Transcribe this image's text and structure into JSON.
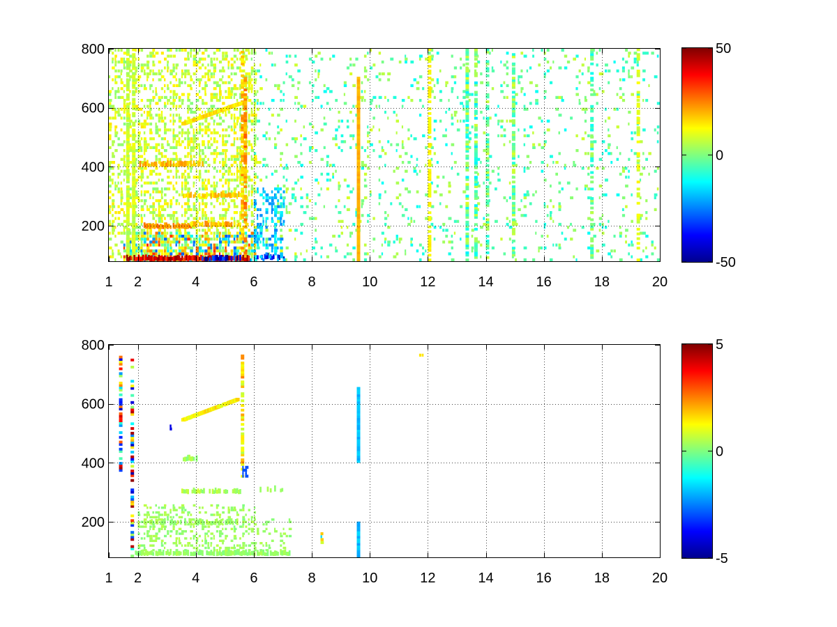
{
  "figure": {
    "background": "#ffffff",
    "colormap": "jet"
  },
  "chart_data": [
    {
      "type": "heatmap",
      "title": "",
      "xlabel": "",
      "ylabel": "",
      "xlim": [
        1,
        20
      ],
      "ylim": [
        80,
        800
      ],
      "grid": true,
      "x_ticks": [
        1,
        2,
        4,
        6,
        8,
        10,
        12,
        14,
        16,
        18,
        20
      ],
      "x_tick_labels": [
        "1",
        "2",
        "4",
        "6",
        "8",
        "10",
        "12",
        "14",
        "16",
        "18",
        "20"
      ],
      "y_ticks": [
        200,
        400,
        600,
        800
      ],
      "y_tick_labels": [
        "200",
        "400",
        "600",
        "800"
      ],
      "colorbar": {
        "clim": [
          -50,
          50
        ],
        "ticks": [
          50,
          0,
          -50
        ],
        "tick_labels": [
          "50",
          "0",
          "-50"
        ]
      },
      "features": [
        {
          "kind": "scatter",
          "x_range": [
            1.0,
            6.0
          ],
          "y_range": [
            80,
            800
          ],
          "value_range": [
            0,
            15
          ],
          "density": 0.45,
          "cell_height": 10
        },
        {
          "kind": "scatter",
          "x_range": [
            1.5,
            6.0
          ],
          "y_range": [
            80,
            180
          ],
          "value_range": [
            -30,
            35
          ],
          "density": 0.7,
          "cell_height": 10
        },
        {
          "kind": "scatter",
          "x_range": [
            6.0,
            10.0
          ],
          "y_range": [
            80,
            800
          ],
          "value_range": [
            -12,
            10
          ],
          "density": 0.12,
          "cell_height": 10
        },
        {
          "kind": "scatter",
          "x_range": [
            10.0,
            20.0
          ],
          "y_range": [
            80,
            800
          ],
          "value_range": [
            -12,
            8
          ],
          "density": 0.1,
          "cell_height": 10
        },
        {
          "kind": "column",
          "x": 1.6,
          "y_range": [
            80,
            800
          ],
          "value_range": [
            3,
            12
          ],
          "density": 0.9
        },
        {
          "kind": "column",
          "x": 1.8,
          "y_range": [
            80,
            800
          ],
          "value_range": [
            3,
            12
          ],
          "density": 0.9
        },
        {
          "kind": "column",
          "x": 5.55,
          "y_range": [
            80,
            800
          ],
          "value_range": [
            10,
            25
          ],
          "density": 0.6
        },
        {
          "kind": "column",
          "x": 5.65,
          "y_range": [
            80,
            700
          ],
          "value_range": [
            15,
            30
          ],
          "density": 0.7
        },
        {
          "kind": "column",
          "x": 9.55,
          "y_range": [
            80,
            700
          ],
          "value_range": [
            18,
            22
          ],
          "density": 1.0
        },
        {
          "kind": "column",
          "x": 12.0,
          "y_range": [
            80,
            800
          ],
          "value_range": [
            10,
            15
          ],
          "density": 0.65
        },
        {
          "kind": "column",
          "x": 13.3,
          "y_range": [
            80,
            800
          ],
          "value_range": [
            -15,
            10
          ],
          "density": 0.8
        },
        {
          "kind": "column",
          "x": 13.6,
          "y_range": [
            80,
            800
          ],
          "value_range": [
            -15,
            10
          ],
          "density": 0.7
        },
        {
          "kind": "column",
          "x": 14.0,
          "y_range": [
            80,
            800
          ],
          "value_range": [
            -10,
            8
          ],
          "density": 0.6
        },
        {
          "kind": "column",
          "x": 14.9,
          "y_range": [
            80,
            800
          ],
          "value_range": [
            -10,
            10
          ],
          "density": 0.7
        },
        {
          "kind": "column",
          "x": 17.6,
          "y_range": [
            80,
            800
          ],
          "value_range": [
            -12,
            6
          ],
          "density": 0.6
        },
        {
          "kind": "column",
          "x": 19.2,
          "y_range": [
            80,
            800
          ],
          "value_range": [
            6,
            14
          ],
          "density": 0.5
        },
        {
          "kind": "band",
          "x_range": [
            2.2,
            3.8
          ],
          "y": 195,
          "value_range": [
            18,
            28
          ],
          "density": 0.9
        },
        {
          "kind": "band",
          "x_range": [
            3.8,
            5.6
          ],
          "y": 200,
          "value_range": [
            12,
            25
          ],
          "density": 0.7
        },
        {
          "kind": "band",
          "x_range": [
            3.5,
            5.5
          ],
          "y": 300,
          "value_range": [
            12,
            22
          ],
          "density": 0.85
        },
        {
          "kind": "band",
          "x_range": [
            2.0,
            4.2
          ],
          "y": 405,
          "value_range": [
            15,
            25
          ],
          "density": 0.8
        },
        {
          "kind": "line",
          "x_range": [
            3.5,
            5.5
          ],
          "y_range": [
            540,
            610
          ],
          "value_range": [
            10,
            20
          ],
          "density": 0.9
        },
        {
          "kind": "band",
          "x_range": [
            1.6,
            5.8
          ],
          "y": 85,
          "value_range": [
            30,
            50
          ],
          "density": 0.95
        },
        {
          "kind": "band",
          "x_range": [
            4.2,
            5.5
          ],
          "y": 85,
          "value_range": [
            -50,
            -25
          ],
          "density": 0.6
        },
        {
          "kind": "band",
          "x_range": [
            6.0,
            7.0
          ],
          "y": 90,
          "value_range": [
            -45,
            -25
          ],
          "density": 0.6
        },
        {
          "kind": "scatter",
          "x_range": [
            6.0,
            7.0
          ],
          "y_range": [
            80,
            330
          ],
          "value_range": [
            -25,
            -12
          ],
          "density": 0.4,
          "cell_height": 10
        }
      ]
    },
    {
      "type": "heatmap",
      "title": "",
      "xlabel": "",
      "ylabel": "",
      "xlim": [
        1,
        20
      ],
      "ylim": [
        80,
        800
      ],
      "grid": true,
      "x_ticks": [
        1,
        2,
        4,
        6,
        8,
        10,
        12,
        14,
        16,
        18,
        20
      ],
      "x_tick_labels": [
        "1",
        "2",
        "4",
        "6",
        "8",
        "10",
        "12",
        "14",
        "16",
        "18",
        "20"
      ],
      "y_ticks": [
        200,
        400,
        600,
        800
      ],
      "y_tick_labels": [
        "200",
        "400",
        "600",
        "800"
      ],
      "colorbar": {
        "clim": [
          -5,
          5
        ],
        "ticks": [
          5,
          0,
          -5
        ],
        "tick_labels": [
          "5",
          "0",
          "-5"
        ]
      },
      "features": [
        {
          "kind": "band",
          "x_range": [
            1.9,
            7.2
          ],
          "y": 90,
          "value_range": [
            0,
            0.5
          ],
          "density": 0.9
        },
        {
          "kind": "scatter",
          "x_range": [
            2.0,
            6.0
          ],
          "y_range": [
            100,
            260
          ],
          "value_range": [
            0,
            0.6
          ],
          "density": 0.35,
          "cell_height": 8
        },
        {
          "kind": "scatter",
          "x_range": [
            6.0,
            7.2
          ],
          "y_range": [
            100,
            210
          ],
          "value_range": [
            0,
            0.5
          ],
          "density": 0.2,
          "cell_height": 8
        },
        {
          "kind": "band",
          "x_range": [
            2.2,
            5.5
          ],
          "y": 195,
          "value_range": [
            0,
            0.6
          ],
          "density": 0.7
        },
        {
          "kind": "band",
          "x_range": [
            3.5,
            5.5
          ],
          "y": 300,
          "value_range": [
            0,
            0.8
          ],
          "density": 0.75
        },
        {
          "kind": "band",
          "x_range": [
            6.2,
            7.0
          ],
          "y": 305,
          "value_range": [
            0,
            0.5
          ],
          "density": 0.4
        },
        {
          "kind": "band",
          "x_range": [
            3.5,
            4.0
          ],
          "y": 410,
          "value_range": [
            0,
            0.6
          ],
          "density": 0.6
        },
        {
          "kind": "line",
          "x_range": [
            3.5,
            5.4
          ],
          "y_range": [
            540,
            610
          ],
          "value_range": [
            0.8,
            1.8
          ],
          "density": 0.9
        },
        {
          "kind": "column",
          "x": 5.55,
          "y_range": [
            350,
            760
          ],
          "value_range": [
            0.5,
            2.5
          ],
          "density": 0.55
        },
        {
          "kind": "column",
          "x": 1.35,
          "y_range": [
            370,
            760
          ],
          "value_range": [
            -5,
            5
          ],
          "density": 0.7
        },
        {
          "kind": "column",
          "x": 1.75,
          "y_range": [
            80,
            750
          ],
          "value_range": [
            -5,
            5
          ],
          "density": 0.5
        },
        {
          "kind": "column",
          "x": 9.55,
          "y_range": [
            400,
            650
          ],
          "value_range": [
            -2.2,
            -1.6
          ],
          "density": 1.0
        },
        {
          "kind": "column",
          "x": 9.55,
          "y_range": [
            80,
            200
          ],
          "value_range": [
            -2.2,
            -1.6
          ],
          "density": 1.0
        },
        {
          "kind": "scatter",
          "x_range": [
            8.3,
            8.4
          ],
          "y_range": [
            125,
            160
          ],
          "value_range": [
            -2,
            2
          ],
          "density": 1.0,
          "cell_height": 10
        },
        {
          "kind": "scatter",
          "x_range": [
            11.7,
            11.8
          ],
          "y_range": [
            760,
            770
          ],
          "value_range": [
            1.5,
            1.5
          ],
          "density": 1.0,
          "cell_height": 10
        },
        {
          "kind": "scatter",
          "x_range": [
            3.1,
            3.2
          ],
          "y_range": [
            510,
            530
          ],
          "value_range": [
            -4,
            -4
          ],
          "density": 1.0,
          "cell_height": 10
        },
        {
          "kind": "scatter",
          "x_range": [
            5.6,
            5.7
          ],
          "y_range": [
            350,
            390
          ],
          "value_range": [
            -3,
            -3
          ],
          "density": 1.0,
          "cell_height": 10
        }
      ]
    }
  ]
}
